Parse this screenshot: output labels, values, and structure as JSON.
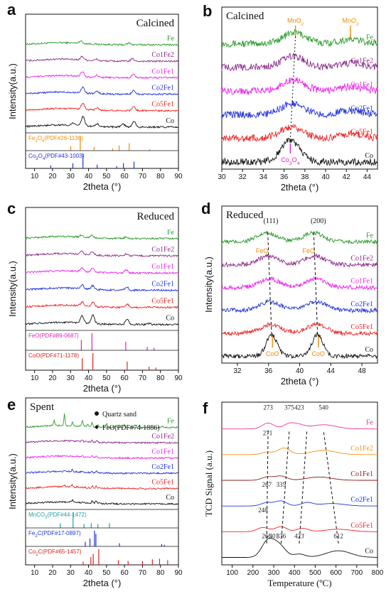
{
  "figure": {
    "colors": {
      "Fe": "#2e9b2e",
      "Co1Fe2": "#8b2a8b",
      "Co1Fe1": "#ee22ee",
      "Co2Fe1": "#2233dd",
      "Co5Fe1": "#ee2222",
      "Co": "#111111",
      "Co1Fe2_tpr": "#f0901a",
      "Co1Fe1_tpr": "#8b1a1a",
      "Fe_tpr": "#ee3399",
      "orange": "#f08c00",
      "magenta": "#e020c0",
      "blue": "#2233dd",
      "red": "#e02020",
      "teal": "#20a0a0"
    }
  },
  "chart_data": [
    {
      "panel": "a",
      "type": "line",
      "title": "Calcined",
      "xlabel": "2theta (°)",
      "ylabel": "Intensity(a.u.)",
      "xlim": [
        5,
        90
      ],
      "xticks": [
        10,
        20,
        30,
        40,
        50,
        60,
        70,
        80,
        90
      ],
      "series": [
        {
          "name": "Fe",
          "color_key": "Fe",
          "peaks": [
            [
              35.5,
              0.35
            ],
            [
              62.5,
              0.25
            ]
          ]
        },
        {
          "name": "Co1Fe2",
          "color_key": "Co1Fe2",
          "peaks": [
            [
              36.5,
              0.5
            ],
            [
              44.5,
              0.2
            ],
            [
              64.5,
              0.35
            ]
          ]
        },
        {
          "name": "Co1Fe1",
          "color_key": "Co1Fe1",
          "peaks": [
            [
              36.5,
              0.7
            ],
            [
              44.5,
              0.25
            ],
            [
              65,
              0.5
            ]
          ]
        },
        {
          "name": "Co2Fe1",
          "color_key": "Co2Fe1",
          "peaks": [
            [
              36.8,
              0.8
            ],
            [
              44.8,
              0.3
            ],
            [
              65.2,
              0.55
            ]
          ]
        },
        {
          "name": "Co5Fe1",
          "color_key": "Co5Fe1",
          "peaks": [
            [
              36.8,
              0.8
            ],
            [
              44.8,
              0.3
            ],
            [
              65.2,
              0.55
            ]
          ]
        },
        {
          "name": "Co",
          "color_key": "Co",
          "peaks": [
            [
              31.3,
              0.3
            ],
            [
              36.9,
              1.3
            ],
            [
              44.8,
              0.4
            ],
            [
              59.4,
              0.4
            ],
            [
              65.3,
              0.8
            ]
          ]
        }
      ],
      "references": [
        {
          "name": "Fe3O4(PDF#26-1136)",
          "color_key": "orange",
          "lines": [
            [
              30.1,
              0.3
            ],
            [
              35.4,
              1.0
            ],
            [
              43.1,
              0.25
            ],
            [
              53.4,
              0.15
            ],
            [
              57.0,
              0.35
            ],
            [
              62.6,
              0.5
            ],
            [
              74.0,
              0.1
            ]
          ]
        },
        {
          "name": "Co3O4(PDF#43-1003)",
          "color_key": "blue",
          "lines": [
            [
              19.0,
              0.2
            ],
            [
              31.3,
              0.35
            ],
            [
              36.9,
              1.0
            ],
            [
              44.8,
              0.25
            ],
            [
              55.7,
              0.15
            ],
            [
              59.4,
              0.35
            ],
            [
              65.3,
              0.45
            ]
          ]
        }
      ]
    },
    {
      "panel": "b",
      "type": "line",
      "title": "Calcined",
      "xlabel": "2theta (°)",
      "ylabel": "",
      "xlim": [
        30,
        45
      ],
      "xticks": [
        30,
        32,
        34,
        36,
        38,
        40,
        42,
        44
      ],
      "series": [
        {
          "name": "Fe",
          "color_key": "Fe",
          "peak": 37.0
        },
        {
          "name": "Co1Fe2",
          "color_key": "Co1Fe2",
          "peak": 36.9
        },
        {
          "name": "Co1Fe1",
          "color_key": "Co1Fe1",
          "peak": 36.9
        },
        {
          "name": "Co2Fe1",
          "color_key": "Co2Fe1",
          "peak": 36.8
        },
        {
          "name": "Co5Fe1",
          "color_key": "Co5Fe1",
          "peak": 36.7
        },
        {
          "name": "Co",
          "color_key": "Co",
          "peak": 36.6
        }
      ],
      "annotations": [
        {
          "text": "MnO2",
          "x": 37.1,
          "color_key": "orange"
        },
        {
          "text": "MnO2",
          "x": 42.4,
          "color_key": "orange"
        },
        {
          "text": "Co3O4",
          "x": 36.6,
          "color_key": "magenta"
        }
      ]
    },
    {
      "panel": "c",
      "type": "line",
      "title": "Reduced",
      "xlabel": "2theta (°)",
      "ylabel": "Intensity(a.u.)",
      "xlim": [
        5,
        90
      ],
      "xticks": [
        10,
        20,
        30,
        40,
        50,
        60,
        70,
        80,
        90
      ],
      "series": [
        {
          "name": "Fe",
          "color_key": "Fe",
          "peaks": [
            [
              36.0,
              0.3
            ],
            [
              41.8,
              0.3
            ],
            [
              60.7,
              0.2
            ]
          ]
        },
        {
          "name": "Co1Fe2",
          "color_key": "Co1Fe2",
          "peaks": [
            [
              36.3,
              0.4
            ],
            [
              42.0,
              0.4
            ],
            [
              61.0,
              0.25
            ]
          ]
        },
        {
          "name": "Co1Fe1",
          "color_key": "Co1Fe1",
          "peaks": [
            [
              36.3,
              0.5
            ],
            [
              42.2,
              0.5
            ],
            [
              61.0,
              0.4
            ]
          ]
        },
        {
          "name": "Co2Fe1",
          "color_key": "Co2Fe1",
          "peaks": [
            [
              36.4,
              0.5
            ],
            [
              42.3,
              0.5
            ],
            [
              61.3,
              0.4
            ]
          ]
        },
        {
          "name": "Co5Fe1",
          "color_key": "Co5Fe1",
          "peaks": [
            [
              36.5,
              0.55
            ],
            [
              42.4,
              0.6
            ],
            [
              61.5,
              0.45
            ]
          ]
        },
        {
          "name": "Co",
          "color_key": "Co",
          "peaks": [
            [
              36.5,
              1.0
            ],
            [
              42.4,
              1.2
            ],
            [
              61.5,
              0.7
            ],
            [
              73.7,
              0.15
            ]
          ]
        }
      ],
      "references": [
        {
          "name": "FeO(PDF#89-0687)",
          "color_key": "magenta",
          "lines": [
            [
              36.0,
              0.6
            ],
            [
              41.9,
              1.0
            ],
            [
              60.7,
              0.5
            ],
            [
              72.6,
              0.2
            ],
            [
              76.4,
              0.15
            ]
          ]
        },
        {
          "name": "CoO(PDF#71-1178)",
          "color_key": "red",
          "lines": [
            [
              36.5,
              0.7
            ],
            [
              42.4,
              1.0
            ],
            [
              61.5,
              0.5
            ],
            [
              73.7,
              0.2
            ],
            [
              77.5,
              0.15
            ]
          ]
        }
      ]
    },
    {
      "panel": "d",
      "type": "line",
      "title": "Reduced",
      "xlabel": "2theta (°)",
      "ylabel": "Intensity(a.u.)",
      "xlim": [
        30,
        50
      ],
      "xticks": [
        32,
        36,
        40,
        44,
        48
      ],
      "series": [
        {
          "name": "Fe",
          "color_key": "Fe",
          "peaks": [
            35.9,
            41.8
          ]
        },
        {
          "name": "Co1Fe2",
          "color_key": "Co1Fe2",
          "peaks": [
            36.0,
            41.9
          ]
        },
        {
          "name": "Co1Fe1",
          "color_key": "Co1Fe1",
          "peaks": [
            36.1,
            42.0
          ]
        },
        {
          "name": "Co2Fe1",
          "color_key": "Co2Fe1",
          "peaks": [
            36.2,
            42.1
          ]
        },
        {
          "name": "Co5Fe1",
          "color_key": "Co5Fe1",
          "peaks": [
            36.3,
            42.2
          ]
        },
        {
          "name": "Co",
          "color_key": "Co",
          "peaks": [
            36.4,
            42.3
          ]
        }
      ],
      "annotations": [
        {
          "text": "(111)",
          "x": 36.3,
          "color_key": "Co"
        },
        {
          "text": "(200)",
          "x": 42.4,
          "color_key": "Co"
        },
        {
          "text": "FeO",
          "x": 35.9,
          "color_key": "orange"
        },
        {
          "text": "FeO",
          "x": 41.9,
          "color_key": "orange"
        },
        {
          "text": "CoO",
          "x": 36.5,
          "color_key": "orange"
        },
        {
          "text": "CoO",
          "x": 42.4,
          "color_key": "orange"
        }
      ]
    },
    {
      "panel": "e",
      "type": "line",
      "title": "Spent",
      "xlabel": "2theta (°)",
      "ylabel": "Intensity(a.u.)",
      "xlim": [
        5,
        90
      ],
      "xticks": [
        10,
        20,
        30,
        40,
        50,
        60,
        70,
        80,
        90
      ],
      "legend": [
        "Quartz sand",
        "FeO(PDF#74-1886)"
      ],
      "series": [
        {
          "name": "Fe",
          "color_key": "Fe",
          "peaks": [
            [
              20.9,
              0.8
            ],
            [
              26.6,
              1.8
            ],
            [
              31.0,
              0.6
            ],
            [
              36.5,
              0.9
            ],
            [
              39.5,
              0.4
            ],
            [
              42.0,
              0.6
            ],
            [
              45.5,
              0.3
            ],
            [
              50.1,
              0.6
            ],
            [
              55.0,
              0.3
            ],
            [
              60.0,
              0.4
            ],
            [
              68.2,
              0.3
            ],
            [
              81.0,
              0.2
            ]
          ]
        },
        {
          "name": "Co1Fe2",
          "color_key": "Co1Fe2",
          "peaks": [
            [
              36.5,
              0.2
            ],
            [
              42.0,
              0.25
            ],
            [
              44.5,
              0.3
            ]
          ]
        },
        {
          "name": "Co1Fe1",
          "color_key": "Co1Fe1",
          "peaks": [
            [
              36.5,
              0.2
            ],
            [
              42.0,
              0.3
            ],
            [
              44.2,
              0.3
            ]
          ]
        },
        {
          "name": "Co2Fe1",
          "color_key": "Co2Fe1",
          "peaks": [
            [
              31.0,
              0.35
            ],
            [
              36.5,
              0.2
            ],
            [
              42.0,
              0.3
            ],
            [
              44.2,
              0.35
            ]
          ]
        },
        {
          "name": "Co5Fe1",
          "color_key": "Co5Fe1",
          "peaks": [
            [
              26.6,
              0.2
            ],
            [
              31.0,
              0.3
            ],
            [
              42.0,
              0.35
            ],
            [
              44.3,
              0.35
            ]
          ]
        },
        {
          "name": "Co",
          "color_key": "Co",
          "peaks": [
            [
              31.0,
              0.3
            ],
            [
              42.0,
              0.3
            ],
            [
              44.3,
              0.4
            ]
          ]
        }
      ],
      "references": [
        {
          "name": "MnCO3(PDF#44-1472)",
          "color_key": "teal",
          "lines": [
            [
              24.3,
              0.3
            ],
            [
              31.4,
              1.0
            ],
            [
              37.5,
              0.25
            ],
            [
              41.5,
              0.3
            ],
            [
              45.2,
              0.25
            ],
            [
              51.6,
              0.3
            ]
          ]
        },
        {
          "name": "Fe2C(PDF#17-0897)",
          "color_key": "blue",
          "lines": [
            [
              38.2,
              0.3
            ],
            [
              40.8,
              0.5
            ],
            [
              43.3,
              1.0
            ],
            [
              44.1,
              0.8
            ],
            [
              57.2,
              0.2
            ],
            [
              80.7,
              0.15
            ],
            [
              82.2,
              0.1
            ]
          ]
        },
        {
          "name": "Co2C(PDF#65-1457)",
          "color_key": "red",
          "lines": [
            [
              37.0,
              0.2
            ],
            [
              41.3,
              0.5
            ],
            [
              42.6,
              0.7
            ],
            [
              45.7,
              1.0
            ],
            [
              56.6,
              0.3
            ],
            [
              62.0,
              0.25
            ],
            [
              70.0,
              0.25
            ],
            [
              75.5,
              0.35
            ],
            [
              79.5,
              0.4
            ],
            [
              84.0,
              0.3
            ]
          ]
        }
      ]
    },
    {
      "panel": "f",
      "type": "line",
      "title": "",
      "xlabel": "Temperature (ºC)",
      "ylabel": "TCD Signal (a.u.)",
      "xlim": [
        50,
        800
      ],
      "xticks": [
        100,
        200,
        300,
        400,
        500,
        600,
        700,
        800
      ],
      "series": [
        {
          "name": "Fe",
          "color_key": "Fe_tpr",
          "peaks": [
            [
              273,
              0.7
            ],
            [
              375,
              0.6
            ],
            [
              423,
              0.4
            ],
            [
              540,
              0.5
            ]
          ]
        },
        {
          "name": "Co1Fe2",
          "color_key": "Co1Fe2_tpr",
          "peaks": [
            [
              271,
              0.3
            ],
            [
              350,
              0.8
            ],
            [
              540,
              0.5
            ]
          ]
        },
        {
          "name": "Co1Fe1",
          "color_key": "Co1Fe1_tpr",
          "peaks": [
            [
              270,
              0.4
            ],
            [
              335,
              0.5
            ],
            [
              520,
              0.4
            ]
          ]
        },
        {
          "name": "Co2Fe1",
          "color_key": "Co2Fe1",
          "peaks": [
            [
              267,
              0.4
            ],
            [
              335,
              0.6
            ],
            [
              460,
              0.4
            ],
            [
              580,
              0.3
            ]
          ]
        },
        {
          "name": "Co5Fe1",
          "color_key": "Co5Fe1",
          "peaks": [
            [
              248,
              0.5
            ],
            [
              335,
              0.6
            ],
            [
              440,
              0.4
            ],
            [
              610,
              0.3
            ]
          ]
        },
        {
          "name": "Co",
          "color_key": "Co",
          "peaks": [
            [
              266,
              1.6
            ],
            [
              301,
              1.0
            ],
            [
              336,
              1.0
            ],
            [
              423,
              0.4
            ],
            [
              612,
              0.8
            ]
          ]
        }
      ],
      "peak_labels": [
        {
          "text": "273",
          "x": 273,
          "series": "Fe"
        },
        {
          "text": "375",
          "x": 375,
          "series": "Fe"
        },
        {
          "text": "423",
          "x": 423,
          "series": "Fe"
        },
        {
          "text": "540",
          "x": 540,
          "series": "Fe"
        },
        {
          "text": "271",
          "x": 271,
          "series": "Co1Fe2"
        },
        {
          "text": "335",
          "x": 335,
          "series": "Co2Fe1"
        },
        {
          "text": "267",
          "x": 267,
          "series": "Co2Fe1"
        },
        {
          "text": "248",
          "x": 248,
          "series": "Co5Fe1"
        },
        {
          "text": "266",
          "x": 266,
          "series": "Co"
        },
        {
          "text": "301",
          "x": 301,
          "series": "Co"
        },
        {
          "text": "336",
          "x": 336,
          "series": "Co"
        },
        {
          "text": "423",
          "x": 423,
          "series": "Co"
        },
        {
          "text": "612",
          "x": 612,
          "series": "Co"
        }
      ]
    }
  ]
}
